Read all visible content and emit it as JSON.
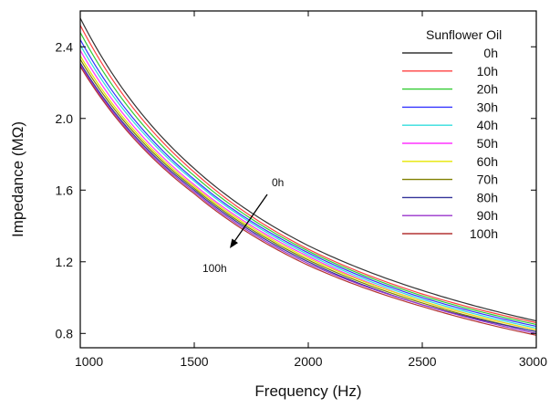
{
  "chart_data": {
    "type": "line",
    "title": "",
    "xlabel": "Frequency (Hz)",
    "ylabel": "Impedance (MΩ)",
    "xlim": [
      1000,
      3000
    ],
    "ylim": [
      0.72,
      2.6
    ],
    "xticks": [
      1000,
      1500,
      2000,
      2500,
      3000
    ],
    "xtick_labels": [
      "1000",
      "1500",
      "2000",
      "2500",
      "3000"
    ],
    "yticks": [
      0.8,
      1.2,
      1.6,
      2.0,
      2.4
    ],
    "ytick_labels": [
      "0.8",
      "1.2",
      "1.6",
      "2.0",
      "2.4"
    ],
    "grid": false,
    "legend_title": "Sunflower Oil",
    "legend_position": "top-right",
    "x": [
      1000,
      1500,
      2000,
      2500,
      3000
    ],
    "series": [
      {
        "name": "0h",
        "color": "#333333",
        "values": [
          2.56,
          1.72,
          1.29,
          1.04,
          0.87
        ]
      },
      {
        "name": "10h",
        "color": "#ff4040",
        "values": [
          2.52,
          1.7,
          1.27,
          1.02,
          0.86
        ]
      },
      {
        "name": "20h",
        "color": "#33cc33",
        "values": [
          2.48,
          1.68,
          1.26,
          1.01,
          0.85
        ]
      },
      {
        "name": "30h",
        "color": "#3333ff",
        "values": [
          2.44,
          1.66,
          1.25,
          1.0,
          0.84
        ]
      },
      {
        "name": "40h",
        "color": "#33dddd",
        "values": [
          2.41,
          1.65,
          1.24,
          0.99,
          0.83
        ]
      },
      {
        "name": "50h",
        "color": "#ff33ff",
        "values": [
          2.38,
          1.63,
          1.23,
          0.98,
          0.82
        ]
      },
      {
        "name": "60h",
        "color": "#e6e600",
        "values": [
          2.35,
          1.62,
          1.22,
          0.98,
          0.82
        ]
      },
      {
        "name": "70h",
        "color": "#808000",
        "values": [
          2.33,
          1.61,
          1.21,
          0.97,
          0.81
        ]
      },
      {
        "name": "80h",
        "color": "#333399",
        "values": [
          2.31,
          1.6,
          1.2,
          0.96,
          0.81
        ]
      },
      {
        "name": "90h",
        "color": "#9933cc",
        "values": [
          2.3,
          1.59,
          1.19,
          0.96,
          0.8
        ]
      },
      {
        "name": "100h",
        "color": "#b33333",
        "values": [
          2.29,
          1.58,
          1.18,
          0.95,
          0.79
        ]
      }
    ],
    "annotations": [
      {
        "text": "0h"
      },
      {
        "text": "100h"
      }
    ]
  }
}
